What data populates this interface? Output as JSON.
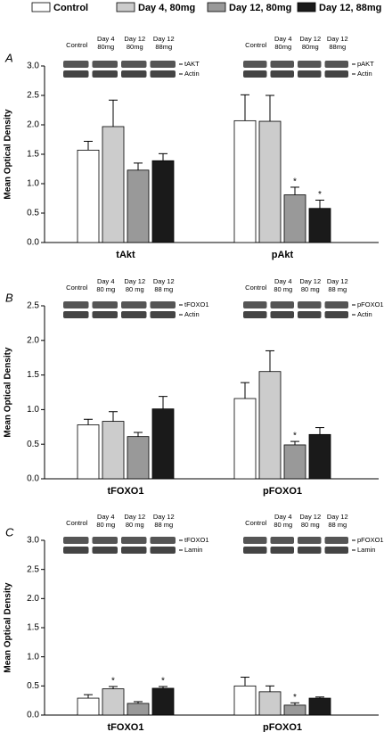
{
  "legend": [
    {
      "name": "Control",
      "color": "#ffffff"
    },
    {
      "name": "Day 4, 80mg",
      "color": "#cccccc"
    },
    {
      "name": "Day 12, 80mg",
      "color": "#999999"
    },
    {
      "name": "Day 12, 88mg",
      "color": "#1a1a1a"
    }
  ],
  "chart_data": [
    {
      "type": "bar",
      "panel": "A",
      "ylabel": "Mean Optical Density",
      "categories": [
        "tAkt",
        "pAkt"
      ],
      "ylim": [
        0,
        3
      ],
      "yticks": [
        {
          "value": 0,
          "label": "0.0"
        },
        0.5,
        {
          "value": 1,
          "label": "1.0"
        },
        1.5,
        {
          "value": 2,
          "label": "2.0"
        },
        2.5,
        {
          "value": 3,
          "label": "3.0"
        }
      ],
      "series": [
        {
          "values": [
            1.57,
            2.07
          ],
          "errors": [
            0.15,
            0.44
          ],
          "significance": [
            null,
            null
          ]
        },
        {
          "values": [
            1.97,
            2.06
          ],
          "errors": [
            0.45,
            0.44
          ],
          "significance": [
            null,
            null
          ]
        },
        {
          "values": [
            1.23,
            0.81
          ],
          "errors": [
            0.12,
            0.13
          ],
          "significance": [
            null,
            "*"
          ]
        },
        {
          "values": [
            1.39,
            0.58
          ],
          "errors": [
            0.12,
            0.14
          ],
          "significance": [
            null,
            "*"
          ]
        }
      ],
      "blots": [
        {
          "lanes": [
            [
              "Control"
            ],
            [
              "Day 4",
              "80mg"
            ],
            [
              "Day 12",
              "80mg"
            ],
            [
              "Day 12",
              "88mg"
            ]
          ],
          "proteins": [
            "tAKT",
            "Actin"
          ]
        },
        {
          "lanes": [
            [
              "Control"
            ],
            [
              "Day 4",
              "80mg"
            ],
            [
              "Day 12",
              "80mg"
            ],
            [
              "Day 12",
              "88mg"
            ]
          ],
          "proteins": [
            "pAKT",
            "Actin"
          ]
        }
      ]
    },
    {
      "type": "bar",
      "panel": "B",
      "ylabel": "Mean Optical Density",
      "categories": [
        "tFOXO1",
        "pFOXO1"
      ],
      "ylim": [
        0,
        2.5
      ],
      "yticks": [
        {
          "value": 0,
          "label": "0.0"
        },
        0.5,
        {
          "value": 1,
          "label": "1.0"
        },
        1.5,
        {
          "value": 2,
          "label": "2.0"
        },
        2.5
      ],
      "series": [
        {
          "values": [
            0.78,
            1.16
          ],
          "errors": [
            0.08,
            0.23
          ],
          "significance": [
            null,
            null
          ]
        },
        {
          "values": [
            0.83,
            1.55
          ],
          "errors": [
            0.14,
            0.3
          ],
          "significance": [
            null,
            null
          ]
        },
        {
          "values": [
            0.61,
            0.49
          ],
          "errors": [
            0.06,
            0.05
          ],
          "significance": [
            null,
            "*"
          ]
        },
        {
          "values": [
            1.01,
            0.64
          ],
          "errors": [
            0.18,
            0.1
          ],
          "significance": [
            null,
            null
          ]
        }
      ],
      "blots": [
        {
          "lanes": [
            [
              "Control"
            ],
            [
              "Day 4",
              "80 mg"
            ],
            [
              "Day 12",
              "80 mg"
            ],
            [
              "Day 12",
              "88 mg"
            ]
          ],
          "proteins": [
            "tFOXO1",
            "Actin"
          ]
        },
        {
          "lanes": [
            [
              "Control"
            ],
            [
              "Day 4",
              "80 mg"
            ],
            [
              "Day 12",
              "80 mg"
            ],
            [
              "Day 12",
              "88 mg"
            ]
          ],
          "proteins": [
            "pFOXO1",
            "Actin"
          ]
        }
      ]
    },
    {
      "type": "bar",
      "panel": "C",
      "ylabel": "Mean Optical Density",
      "categories": [
        "tFOXO1",
        "pFOXO1"
      ],
      "ylim": [
        0,
        3
      ],
      "yticks": [
        {
          "value": 0,
          "label": "0.0"
        },
        0.5,
        {
          "value": 1,
          "label": "1.0"
        },
        1.5,
        {
          "value": 2,
          "label": "2.0"
        },
        2.5,
        {
          "value": 3,
          "label": "3.0"
        }
      ],
      "series": [
        {
          "values": [
            0.29,
            0.5
          ],
          "errors": [
            0.06,
            0.15
          ],
          "significance": [
            null,
            null
          ]
        },
        {
          "values": [
            0.45,
            0.4
          ],
          "errors": [
            0.04,
            0.1
          ],
          "significance": [
            "*",
            null
          ]
        },
        {
          "values": [
            0.2,
            0.17
          ],
          "errors": [
            0.03,
            0.04
          ],
          "significance": [
            null,
            "*"
          ]
        },
        {
          "values": [
            0.46,
            0.29
          ],
          "errors": [
            0.03,
            0.02
          ],
          "significance": [
            "*",
            null
          ]
        }
      ],
      "blots": [
        {
          "lanes": [
            [
              "Control"
            ],
            [
              "Day 4",
              "80 mg"
            ],
            [
              "Day 12",
              "80 mg"
            ],
            [
              "Day 12",
              "88 mg"
            ]
          ],
          "proteins": [
            "tFOXO1",
            "Lamin"
          ]
        },
        {
          "lanes": [
            [
              "Control"
            ],
            [
              "Day 4",
              "80 mg"
            ],
            [
              "Day 12",
              "80 mg"
            ],
            [
              "Day 12",
              "88 mg"
            ]
          ],
          "proteins": [
            "pFOXO1",
            "Lamin"
          ]
        }
      ]
    }
  ]
}
